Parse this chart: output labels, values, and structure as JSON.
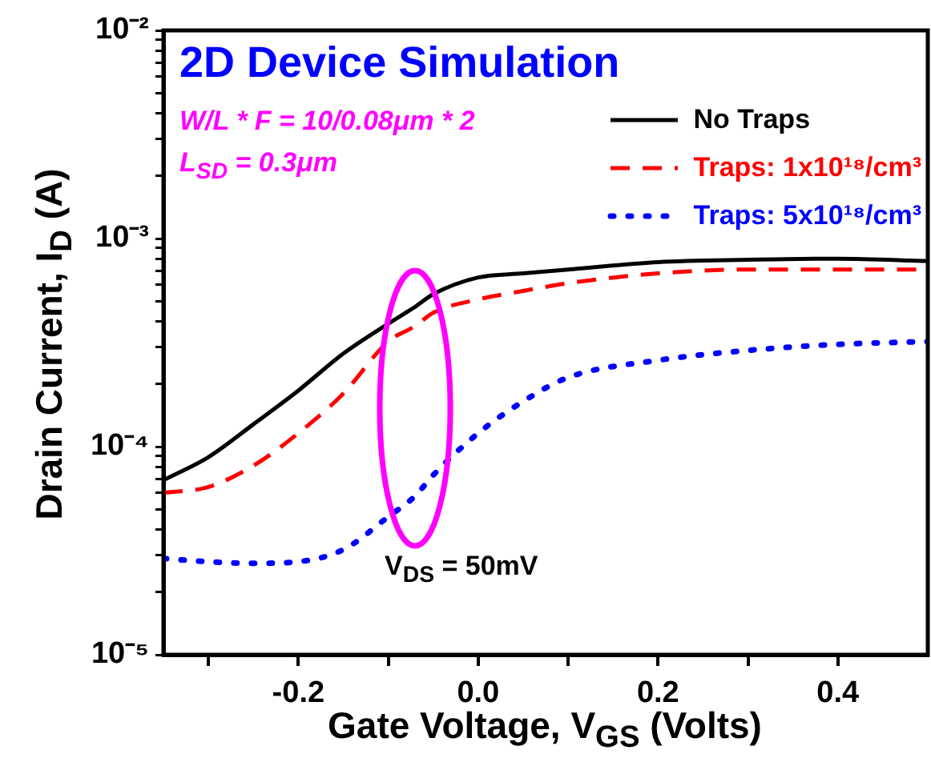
{
  "chart_data": {
    "type": "line",
    "title": "2D Device Simulation",
    "xlabel": "Gate Voltage, V$_{GS}$ (Volts)",
    "ylabel": "Drain Current, I$_{D}$ (A)",
    "annotations": [
      "W/L * F = 10/0.08μm * 2",
      "L$_{SD}$ = 0.3μm",
      "V$_{DS}$ = 50mV"
    ],
    "x": [
      -0.35,
      -0.3,
      -0.25,
      -0.2,
      -0.15,
      -0.1,
      -0.07,
      -0.05,
      0,
      0.05,
      0.1,
      0.2,
      0.3,
      0.4,
      0.5
    ],
    "series": [
      {
        "name": "No Traps",
        "color": "#000000",
        "line_style": "solid",
        "values": [
          6.9e-05,
          8.9e-05,
          0.000128,
          0.000186,
          0.00028,
          0.00039,
          0.00047,
          0.00054,
          0.00065,
          0.00068,
          0.00071,
          0.00077,
          0.00079,
          0.0008,
          0.00078
        ]
      },
      {
        "name": "Traps: 1x10¹⁸/cm³",
        "color": "#ff0000",
        "line_style": "dashed",
        "values": [
          6e-05,
          6.4e-05,
          8.1e-05,
          0.000116,
          0.00018,
          0.00032,
          0.00038,
          0.00044,
          0.00051,
          0.00056,
          0.00061,
          0.00068,
          0.00071,
          0.00071,
          0.00071
        ]
      },
      {
        "name": "Traps: 5x10¹⁸/cm³",
        "color": "#0000ff",
        "line_style": "dotted",
        "values": [
          2.9e-05,
          2.8e-05,
          2.75e-05,
          2.8e-05,
          3.2e-05,
          4.6e-05,
          5.8e-05,
          7.3e-05,
          0.000116,
          0.000165,
          0.000215,
          0.00026,
          0.00029,
          0.00031,
          0.00032
        ]
      }
    ],
    "xlim": [
      -0.35,
      0.5
    ],
    "xticks": [
      {
        "value": -0.3,
        "label": null
      },
      -0.2,
      {
        "value": -0.1,
        "label": null
      },
      {
        "value": 0,
        "label": "0.0"
      },
      {
        "value": 0.1,
        "label": null
      },
      0.2,
      {
        "value": 0.3,
        "label": null
      },
      0.4
    ],
    "ylim": [
      1e-05,
      0.01
    ],
    "log": true,
    "yticks": [
      {
        "value": 1e-05,
        "label": "10⁻⁵"
      },
      {
        "value": 2e-05,
        "label": null
      },
      {
        "value": 3e-05,
        "label": null
      },
      {
        "value": 4e-05,
        "label": null
      },
      {
        "value": 5e-05,
        "label": null
      },
      {
        "value": 6e-05,
        "label": null
      },
      {
        "value": 7e-05,
        "label": null
      },
      {
        "value": 8e-05,
        "label": null
      },
      {
        "value": 9e-05,
        "label": null
      },
      {
        "value": 0.0001,
        "label": "10⁻⁴"
      },
      {
        "value": 0.0002,
        "label": null
      },
      {
        "value": 0.0003,
        "label": null
      },
      {
        "value": 0.0004,
        "label": null
      },
      {
        "value": 0.0005,
        "label": null
      },
      {
        "value": 0.0006,
        "label": null
      },
      {
        "value": 0.0007,
        "label": null
      },
      {
        "value": 0.0008,
        "label": null
      },
      {
        "value": 0.0009,
        "label": null
      },
      {
        "value": 0.001,
        "label": "10⁻³"
      },
      {
        "value": 0.002,
        "label": null
      },
      {
        "value": 0.003,
        "label": null
      },
      {
        "value": 0.004,
        "label": null
      },
      {
        "value": 0.005,
        "label": null
      },
      {
        "value": 0.006,
        "label": null
      },
      {
        "value": 0.007,
        "label": null
      },
      {
        "value": 0.008,
        "label": null
      },
      {
        "value": 0.009,
        "label": null
      },
      {
        "value": 0.01,
        "label": "10⁻²"
      }
    ],
    "grid": false,
    "legend": "top right",
    "marker": "none"
  }
}
